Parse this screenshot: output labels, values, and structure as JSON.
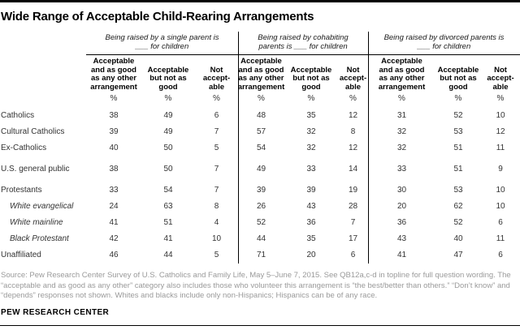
{
  "title": "Wide Range of Acceptable Child-Rearing Arrangements",
  "table": {
    "groups": [
      {
        "id": "single-parent",
        "header": "Being raised by a single parent is\n___ for children"
      },
      {
        "id": "cohabiting",
        "header": "Being raised by cohabiting\nparents is ___ for children"
      },
      {
        "id": "divorced",
        "header": "Being raised by divorced parents is\n___ for children"
      }
    ],
    "col_headers": [
      "Acceptable\nand as good\nas any other\narrangement",
      "Acceptable\nbut not as\ngood",
      "Not\naccept-\nable"
    ],
    "unit": "%"
  },
  "chart_data": {
    "type": "table",
    "title": "Wide Range of Acceptable Child-Rearing Arrangements",
    "column_groups": [
      "Being raised by a single parent is ___ for children",
      "Being raised by cohabiting parents is ___ for children",
      "Being raised by divorced parents is ___ for children"
    ],
    "columns_per_group": [
      "Acceptable and as good as any other arrangement",
      "Acceptable but not as good",
      "Not acceptable"
    ],
    "unit": "%",
    "rows": [
      {
        "label": "Catholics",
        "italic": false,
        "gap_before": false,
        "values": [
          38,
          49,
          6,
          48,
          35,
          12,
          31,
          52,
          10
        ]
      },
      {
        "label": "Cultural Catholics",
        "italic": false,
        "gap_before": false,
        "values": [
          39,
          49,
          7,
          57,
          32,
          8,
          32,
          53,
          12
        ]
      },
      {
        "label": "Ex-Catholics",
        "italic": false,
        "gap_before": false,
        "values": [
          40,
          50,
          5,
          54,
          32,
          12,
          32,
          51,
          11
        ]
      },
      {
        "label": "U.S. general public",
        "italic": false,
        "gap_before": true,
        "values": [
          38,
          50,
          7,
          49,
          33,
          14,
          33,
          51,
          9
        ]
      },
      {
        "label": "Protestants",
        "italic": false,
        "gap_before": true,
        "values": [
          33,
          54,
          7,
          39,
          39,
          19,
          30,
          53,
          10
        ]
      },
      {
        "label": "White evangelical",
        "italic": true,
        "gap_before": false,
        "values": [
          24,
          63,
          8,
          26,
          43,
          28,
          20,
          62,
          10
        ]
      },
      {
        "label": "White mainline",
        "italic": true,
        "gap_before": false,
        "values": [
          41,
          51,
          4,
          52,
          36,
          7,
          36,
          52,
          6
        ]
      },
      {
        "label": "Black Protestant",
        "italic": true,
        "gap_before": false,
        "values": [
          42,
          41,
          10,
          44,
          35,
          17,
          43,
          40,
          11
        ]
      },
      {
        "label": "Unaffiliated",
        "italic": false,
        "gap_before": false,
        "values": [
          46,
          44,
          5,
          71,
          20,
          6,
          41,
          47,
          6
        ]
      }
    ]
  },
  "source": "Source: Pew Research Center Survey of U.S. Catholics and Family Life, May 5–June 7, 2015. See QB12a,c-d in topline for full question wording. The “acceptable and as good as any other” category also includes those who volunteer this arrangement is “the best/better than others.” “Don’t know” and “depends” responses not shown. Whites and blacks include only non-Hispanics; Hispanics can be of any race.",
  "footer": "PEW RESEARCH CENTER",
  "colors": {
    "text": "#333333",
    "heading": "#000000",
    "source_gray": "#9a9a9a",
    "rule": "#000000"
  }
}
